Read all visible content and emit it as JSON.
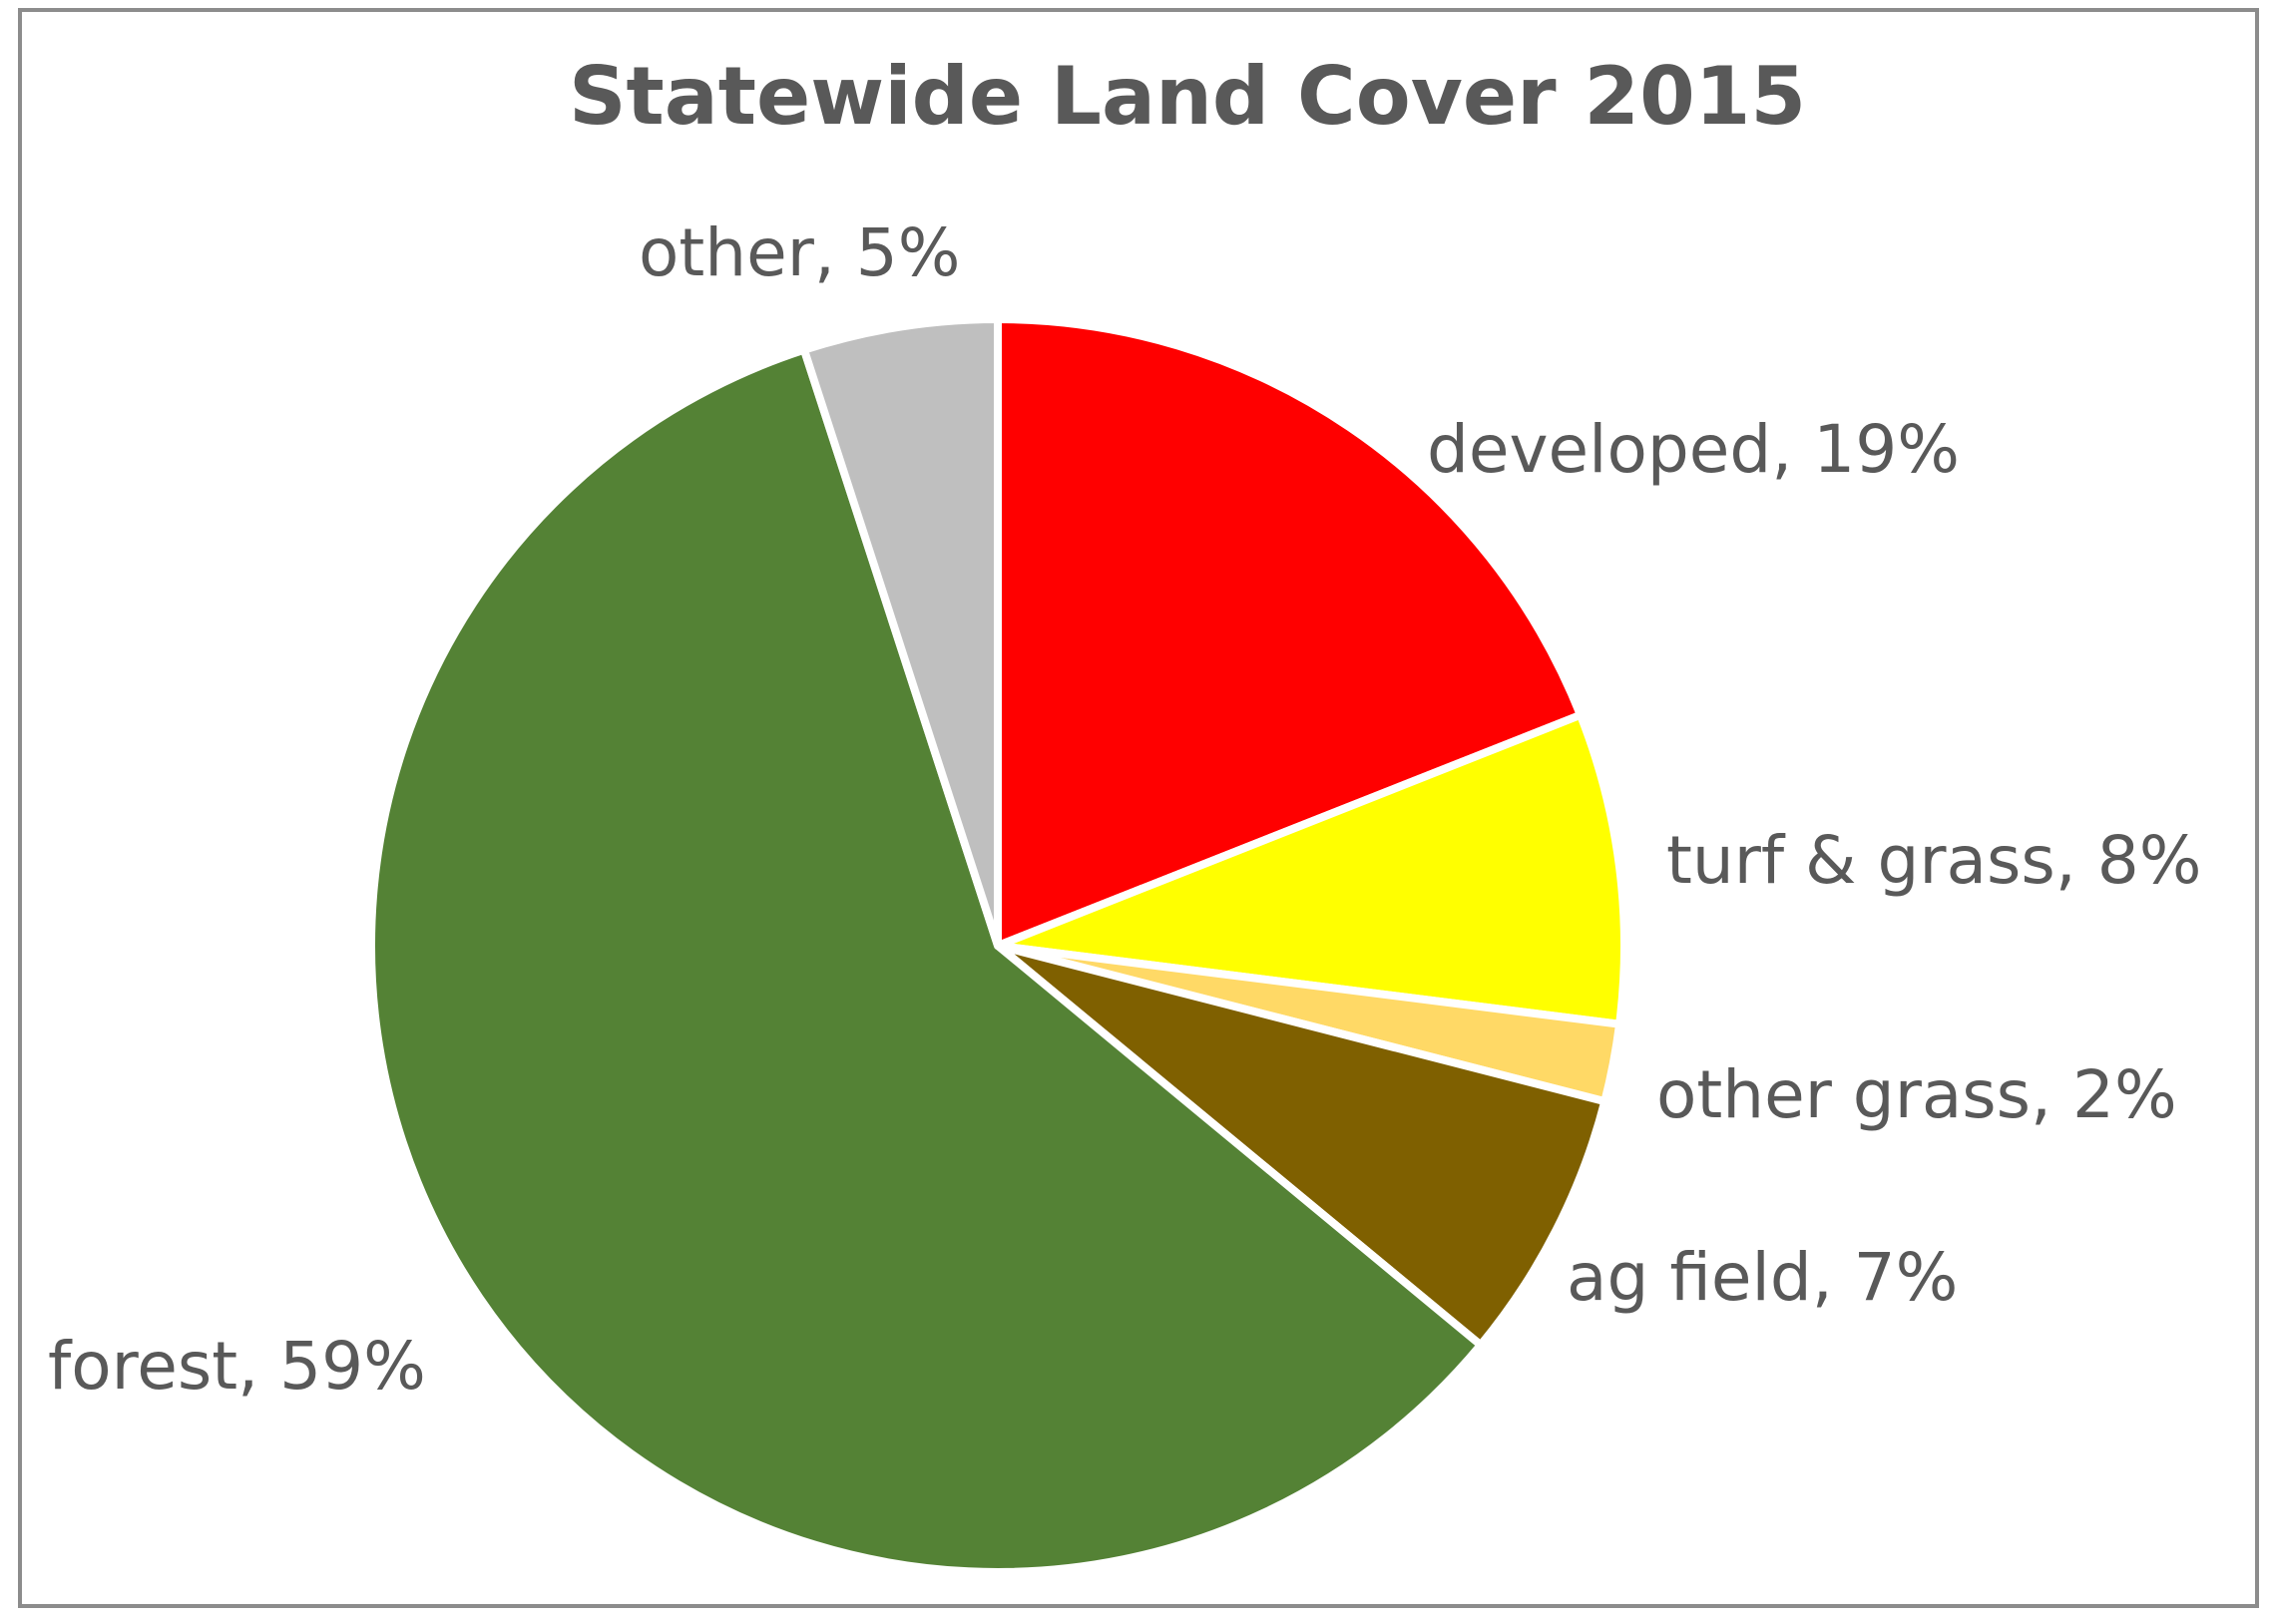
{
  "chart_data": {
    "type": "pie",
    "title": "Statewide Land Cover 2015",
    "legend": "none",
    "slices": [
      {
        "name": "developed",
        "value": 19,
        "label": "developed, 19%",
        "color": "#ff0000"
      },
      {
        "name": "turf & grass",
        "value": 8,
        "label": "turf & grass, 8%",
        "color": "#ffff00"
      },
      {
        "name": "other grass",
        "value": 2,
        "label": "other grass, 2%",
        "color": "#ffd966"
      },
      {
        "name": "ag field",
        "value": 7,
        "label": "ag field, 7%",
        "color": "#7f6000"
      },
      {
        "name": "forest",
        "value": 59,
        "label": "forest, 59%",
        "color": "#548235"
      },
      {
        "name": "other",
        "value": 5,
        "label": "other, 5%",
        "color": "#bfbfbf"
      }
    ]
  }
}
